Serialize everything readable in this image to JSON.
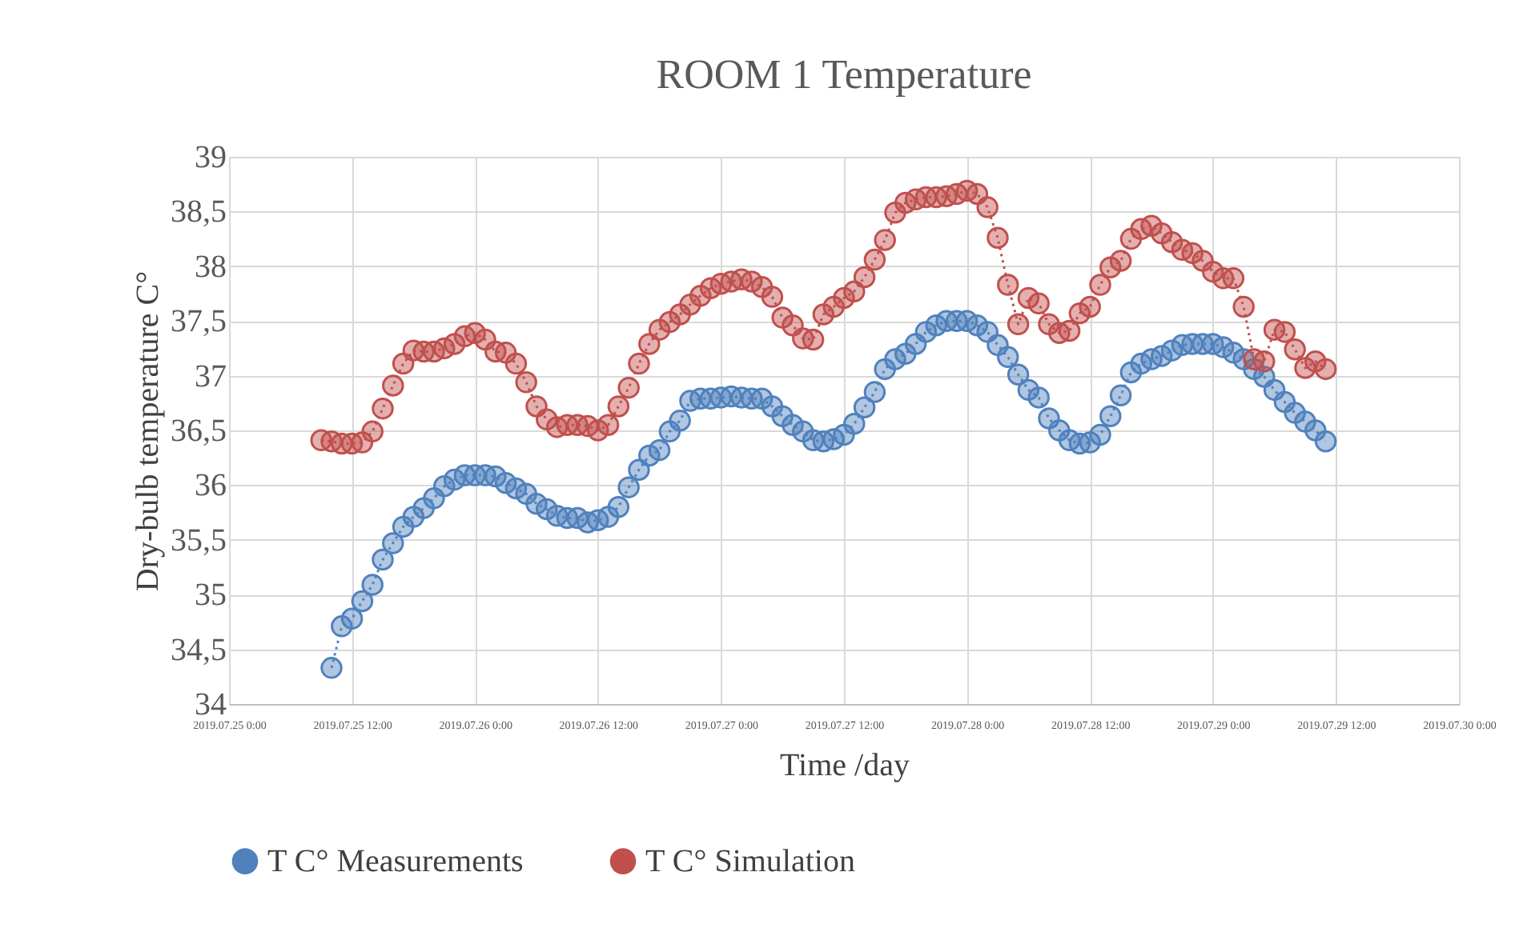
{
  "chart_data": {
    "type": "line",
    "title": "ROOM 1 Temperature",
    "xlabel": "Time /day",
    "ylabel": "Dry-bulb temperature C°",
    "x": [
      "2019-07-25T09:00",
      "2019-07-25T10:00",
      "2019-07-25T11:00",
      "2019-07-25T12:00",
      "2019-07-25T13:00",
      "2019-07-25T14:00",
      "2019-07-25T15:00",
      "2019-07-25T16:00",
      "2019-07-25T17:00",
      "2019-07-25T18:00",
      "2019-07-25T19:00",
      "2019-07-25T20:00",
      "2019-07-25T21:00",
      "2019-07-25T22:00",
      "2019-07-25T23:00",
      "2019-07-26T00:00",
      "2019-07-26T01:00",
      "2019-07-26T02:00",
      "2019-07-26T03:00",
      "2019-07-26T04:00",
      "2019-07-26T05:00",
      "2019-07-26T06:00",
      "2019-07-26T07:00",
      "2019-07-26T08:00",
      "2019-07-26T09:00",
      "2019-07-26T10:00",
      "2019-07-26T11:00",
      "2019-07-26T12:00",
      "2019-07-26T13:00",
      "2019-07-26T14:00",
      "2019-07-26T15:00",
      "2019-07-26T16:00",
      "2019-07-26T17:00",
      "2019-07-26T18:00",
      "2019-07-26T19:00",
      "2019-07-26T20:00",
      "2019-07-26T21:00",
      "2019-07-26T22:00",
      "2019-07-26T23:00",
      "2019-07-27T00:00",
      "2019-07-27T01:00",
      "2019-07-27T02:00",
      "2019-07-27T03:00",
      "2019-07-27T04:00",
      "2019-07-27T05:00",
      "2019-07-27T06:00",
      "2019-07-27T07:00",
      "2019-07-27T08:00",
      "2019-07-27T09:00",
      "2019-07-27T10:00",
      "2019-07-27T11:00",
      "2019-07-27T12:00",
      "2019-07-27T13:00",
      "2019-07-27T14:00",
      "2019-07-27T15:00",
      "2019-07-27T16:00",
      "2019-07-27T17:00",
      "2019-07-27T18:00",
      "2019-07-27T19:00",
      "2019-07-27T20:00",
      "2019-07-27T21:00",
      "2019-07-27T22:00",
      "2019-07-27T23:00",
      "2019-07-28T00:00",
      "2019-07-28T01:00",
      "2019-07-28T02:00",
      "2019-07-28T03:00",
      "2019-07-28T04:00",
      "2019-07-28T05:00",
      "2019-07-28T06:00",
      "2019-07-28T07:00",
      "2019-07-28T08:00",
      "2019-07-28T09:00",
      "2019-07-28T10:00",
      "2019-07-28T11:00",
      "2019-07-28T12:00",
      "2019-07-28T13:00",
      "2019-07-28T14:00",
      "2019-07-28T15:00",
      "2019-07-28T16:00",
      "2019-07-28T17:00",
      "2019-07-28T18:00",
      "2019-07-28T19:00",
      "2019-07-28T20:00",
      "2019-07-28T21:00",
      "2019-07-28T22:00",
      "2019-07-28T23:00",
      "2019-07-29T00:00",
      "2019-07-29T01:00",
      "2019-07-29T02:00",
      "2019-07-29T03:00",
      "2019-07-29T04:00",
      "2019-07-29T05:00",
      "2019-07-29T06:00",
      "2019-07-29T07:00",
      "2019-07-29T08:00",
      "2019-07-29T09:00",
      "2019-07-29T10:00",
      "2019-07-29T11:00"
    ],
    "series": [
      {
        "name": "T C° Measurements",
        "color": "#4f81bd",
        "values": [
          null,
          34.33,
          34.71,
          34.78,
          34.94,
          35.09,
          35.32,
          35.47,
          35.62,
          35.71,
          35.79,
          35.88,
          35.99,
          36.05,
          36.09,
          36.09,
          36.09,
          36.08,
          36.02,
          35.97,
          35.92,
          35.83,
          35.78,
          35.72,
          35.7,
          35.7,
          35.66,
          35.68,
          35.71,
          35.8,
          35.98,
          36.14,
          36.27,
          36.32,
          36.49,
          36.59,
          36.77,
          36.79,
          36.79,
          36.8,
          36.81,
          36.8,
          36.79,
          36.79,
          36.72,
          36.63,
          36.55,
          36.49,
          36.41,
          36.4,
          36.42,
          36.46,
          36.56,
          36.71,
          36.85,
          37.06,
          37.15,
          37.2,
          37.29,
          37.4,
          37.46,
          37.5,
          37.5,
          37.5,
          37.46,
          37.4,
          37.28,
          37.17,
          37.01,
          36.87,
          36.8,
          36.61,
          36.5,
          36.41,
          36.38,
          36.39,
          36.46,
          36.63,
          36.82,
          37.03,
          37.11,
          37.15,
          37.18,
          37.23,
          37.28,
          37.29,
          37.29,
          37.29,
          37.26,
          37.21,
          37.15,
          37.06,
          36.99,
          36.87,
          36.76,
          36.66,
          36.58,
          36.5,
          36.4
        ]
      },
      {
        "name": "T C° Simulation",
        "color": "#c0504d",
        "values": [
          36.41,
          36.4,
          36.38,
          36.38,
          36.39,
          36.49,
          36.7,
          36.91,
          37.11,
          37.23,
          37.22,
          37.22,
          37.25,
          37.29,
          37.36,
          37.39,
          37.33,
          37.22,
          37.21,
          37.11,
          36.94,
          36.72,
          36.6,
          36.53,
          36.55,
          36.55,
          36.54,
          36.5,
          36.55,
          36.72,
          36.89,
          37.11,
          37.29,
          37.42,
          37.49,
          37.56,
          37.65,
          37.73,
          37.8,
          37.84,
          37.86,
          37.88,
          37.86,
          37.81,
          37.72,
          37.53,
          37.46,
          37.34,
          37.33,
          37.56,
          37.63,
          37.71,
          37.77,
          37.9,
          38.06,
          38.24,
          38.49,
          38.58,
          38.61,
          38.63,
          38.63,
          38.64,
          38.66,
          38.69,
          38.66,
          38.54,
          38.26,
          37.83,
          37.47,
          37.71,
          37.66,
          37.47,
          37.39,
          37.41,
          37.57,
          37.63,
          37.83,
          37.99,
          38.05,
          38.25,
          38.34,
          38.37,
          38.3,
          38.22,
          38.15,
          38.12,
          38.05,
          37.95,
          37.89,
          37.89,
          37.63,
          37.15,
          37.13,
          37.42,
          37.4,
          37.24,
          37.07,
          37.13,
          37.06
        ]
      }
    ],
    "xlim": [
      "2019-07-25T00:00",
      "2019-07-30T00:00"
    ],
    "xticks": [
      {
        "value": "2019-07-25T00:00",
        "label": "2019.07.25 0:00"
      },
      {
        "value": "2019-07-25T12:00",
        "label": "2019.07.25 12:00"
      },
      {
        "value": "2019-07-26T00:00",
        "label": "2019.07.26 0:00"
      },
      {
        "value": "2019-07-26T12:00",
        "label": "2019.07.26 12:00"
      },
      {
        "value": "2019-07-27T00:00",
        "label": "2019.07.27 0:00"
      },
      {
        "value": "2019-07-27T12:00",
        "label": "2019.07.27 12:00"
      },
      {
        "value": "2019-07-28T00:00",
        "label": "2019.07.28 0:00"
      },
      {
        "value": "2019-07-28T12:00",
        "label": "2019.07.28 12:00"
      },
      {
        "value": "2019-07-29T00:00",
        "label": "2019.07.29 0:00"
      },
      {
        "value": "2019-07-29T12:00",
        "label": "2019.07.29 12:00"
      },
      {
        "value": "2019-07-30T00:00",
        "label": "2019.07.30 0:00"
      }
    ],
    "ylim": [
      34,
      39
    ],
    "yticks": [
      34,
      {
        "value": 34.5,
        "label": "34,5"
      },
      35,
      {
        "value": 35.5,
        "label": "35,5"
      },
      36,
      {
        "value": 36.5,
        "label": "36,5"
      },
      37,
      {
        "value": 37.5,
        "label": "37,5"
      },
      38,
      {
        "value": 38.5,
        "label": "38,5"
      },
      39
    ],
    "grid": true,
    "legend": "bottom",
    "marker": "circle",
    "line_style": "dotted"
  }
}
